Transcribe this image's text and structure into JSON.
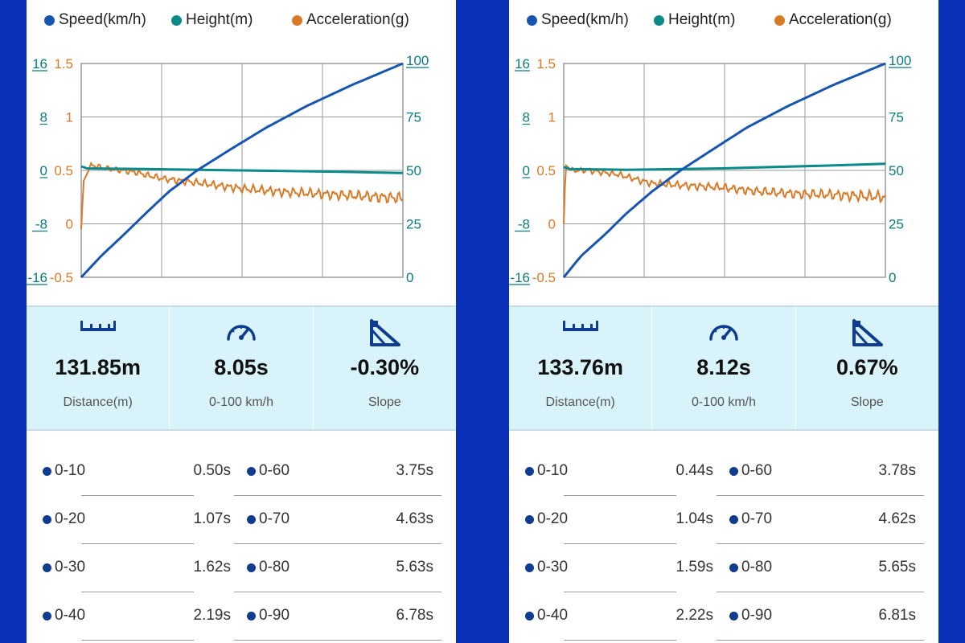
{
  "legend": {
    "speed": "Speed(km/h)",
    "height": "Height(m)",
    "accel": "Acceleration(g)"
  },
  "colors": {
    "speed": "#1655b0",
    "height": "#0b8a8a",
    "accel": "#d97a27",
    "background": "#0b31b9",
    "stats_bg": "#d9f3fa"
  },
  "axes": {
    "height_ticks": [
      "16",
      "8",
      "0",
      "-8",
      "-16"
    ],
    "accel_ticks": [
      "1.5",
      "1",
      "0.5",
      "0",
      "-0.5"
    ],
    "speed_ticks": [
      "100",
      "75",
      "50",
      "25",
      "0"
    ]
  },
  "icons": {
    "distance": "ruler-icon",
    "time": "speedometer-icon",
    "slope": "slope-icon"
  },
  "panels": [
    {
      "stats": {
        "distance_value": "131.85m",
        "distance_label": "Distance(m)",
        "time_value": "8.05s",
        "time_label": "0-100 km/h",
        "slope_value": "-0.30%",
        "slope_label": "Slope"
      },
      "splits": [
        {
          "a_label": "0-10",
          "a_time": "0.50s",
          "b_label": "0-60",
          "b_time": "3.75s"
        },
        {
          "a_label": "0-20",
          "a_time": "1.07s",
          "b_label": "0-70",
          "b_time": "4.63s"
        },
        {
          "a_label": "0-30",
          "a_time": "1.62s",
          "b_label": "0-80",
          "b_time": "5.63s"
        },
        {
          "a_label": "0-40",
          "a_time": "2.19s",
          "b_label": "0-90",
          "b_time": "6.78s"
        }
      ],
      "chart_data": {
        "type": "line",
        "x_range": [
          0,
          8.05
        ],
        "grid": true,
        "legend_placement": "top",
        "y_axes": {
          "left_height": [
            -16,
            16
          ],
          "left_accel": [
            -0.5,
            1.5
          ],
          "right_speed": [
            0,
            100
          ]
        },
        "series": [
          {
            "name": "Speed(km/h)",
            "axis": "right_speed",
            "x": [
              0,
              0.5,
              1.07,
              1.62,
              2.19,
              2.9,
              3.75,
              4.63,
              5.63,
              6.78,
              8.05
            ],
            "y": [
              0,
              10,
              20,
              30,
              40,
              50,
              60,
              70,
              80,
              90,
              100
            ]
          },
          {
            "name": "Height(m)",
            "axis": "left_height",
            "x": [
              0,
              0.15,
              1.6,
              4.0,
              6.5,
              8.05
            ],
            "y": [
              0.6,
              0.3,
              0.2,
              0.0,
              -0.2,
              -0.4
            ]
          },
          {
            "name": "Acceleration(g)",
            "axis": "left_accel",
            "x": [
              0,
              0.06,
              0.25,
              0.6,
              1.0,
              1.4,
              1.7,
              2.1,
              3.0,
              4.0,
              5.0,
              6.0,
              7.0,
              8.05
            ],
            "y": [
              -0.05,
              0.4,
              0.55,
              0.52,
              0.5,
              0.48,
              0.45,
              0.42,
              0.38,
              0.33,
              0.3,
              0.28,
              0.26,
              0.24
            ]
          }
        ]
      }
    },
    {
      "stats": {
        "distance_value": "133.76m",
        "distance_label": "Distance(m)",
        "time_value": "8.12s",
        "time_label": "0-100 km/h",
        "slope_value": "0.67%",
        "slope_label": "Slope"
      },
      "splits": [
        {
          "a_label": "0-10",
          "a_time": "0.44s",
          "b_label": "0-60",
          "b_time": "3.78s"
        },
        {
          "a_label": "0-20",
          "a_time": "1.04s",
          "b_label": "0-70",
          "b_time": "4.62s"
        },
        {
          "a_label": "0-30",
          "a_time": "1.59s",
          "b_label": "0-80",
          "b_time": "5.65s"
        },
        {
          "a_label": "0-40",
          "a_time": "2.22s",
          "b_label": "0-90",
          "b_time": "6.81s"
        }
      ],
      "chart_data": {
        "type": "line",
        "x_range": [
          0,
          8.12
        ],
        "grid": true,
        "legend_placement": "top",
        "y_axes": {
          "left_height": [
            -16,
            16
          ],
          "left_accel": [
            -0.5,
            1.5
          ],
          "right_speed": [
            0,
            100
          ]
        },
        "series": [
          {
            "name": "Speed(km/h)",
            "axis": "right_speed",
            "x": [
              0,
              0.44,
              1.04,
              1.59,
              2.22,
              2.95,
              3.78,
              4.62,
              5.65,
              6.81,
              8.12
            ],
            "y": [
              0,
              10,
              20,
              30,
              40,
              50,
              60,
              70,
              80,
              90,
              100
            ]
          },
          {
            "name": "Height(m)",
            "axis": "left_height",
            "x": [
              0,
              0.15,
              1.6,
              4.0,
              6.5,
              8.12
            ],
            "y": [
              0.5,
              0.2,
              0.1,
              0.3,
              0.7,
              1.0
            ]
          },
          {
            "name": "Acceleration(g)",
            "axis": "left_accel",
            "x": [
              0,
              0.05,
              0.2,
              0.6,
              1.0,
              1.4,
              1.8,
              2.2,
              3.0,
              4.0,
              5.0,
              6.0,
              7.0,
              8.12
            ],
            "y": [
              0.0,
              0.55,
              0.5,
              0.5,
              0.48,
              0.46,
              0.42,
              0.38,
              0.36,
              0.34,
              0.3,
              0.28,
              0.27,
              0.25
            ]
          }
        ]
      }
    }
  ]
}
